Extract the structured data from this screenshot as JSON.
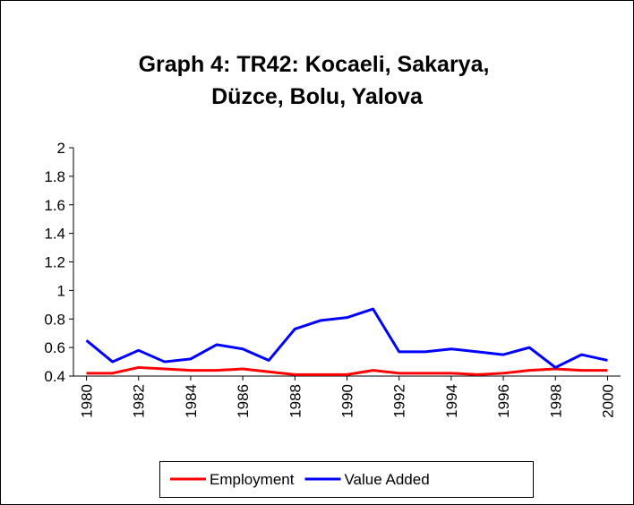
{
  "chart_data": {
    "type": "line",
    "title": [
      "Graph 4: TR42: Kocaeli, Sakarya,",
      "Düzce, Bolu, Yalova"
    ],
    "x": [
      1980,
      1981,
      1982,
      1983,
      1984,
      1985,
      1986,
      1987,
      1988,
      1989,
      1990,
      1991,
      1992,
      1993,
      1994,
      1995,
      1996,
      1997,
      1998,
      1999,
      2000
    ],
    "xlim": [
      1979.5,
      2000.5
    ],
    "xticks": [
      1980,
      1982,
      1984,
      1986,
      1988,
      1990,
      1992,
      1994,
      1996,
      1998,
      2000
    ],
    "ylim": [
      0.4,
      2
    ],
    "yticks": [
      0.4,
      0.6,
      0.8,
      1,
      1.2,
      1.4,
      1.6,
      1.8,
      2
    ],
    "grid": false,
    "legend": "bottom",
    "series": [
      {
        "name": "Employment",
        "color": "#ff0000",
        "values": [
          0.42,
          0.42,
          0.46,
          0.45,
          0.44,
          0.44,
          0.45,
          0.43,
          0.41,
          0.41,
          0.41,
          0.44,
          0.42,
          0.42,
          0.42,
          0.41,
          0.42,
          0.44,
          0.45,
          0.44,
          0.44
        ]
      },
      {
        "name": "Value Added",
        "color": "#0000ff",
        "values": [
          0.65,
          0.5,
          0.58,
          0.5,
          0.52,
          0.62,
          0.59,
          0.51,
          0.73,
          0.79,
          0.81,
          0.87,
          0.57,
          0.57,
          0.59,
          0.57,
          0.55,
          0.6,
          0.46,
          0.55,
          0.51
        ]
      }
    ]
  }
}
